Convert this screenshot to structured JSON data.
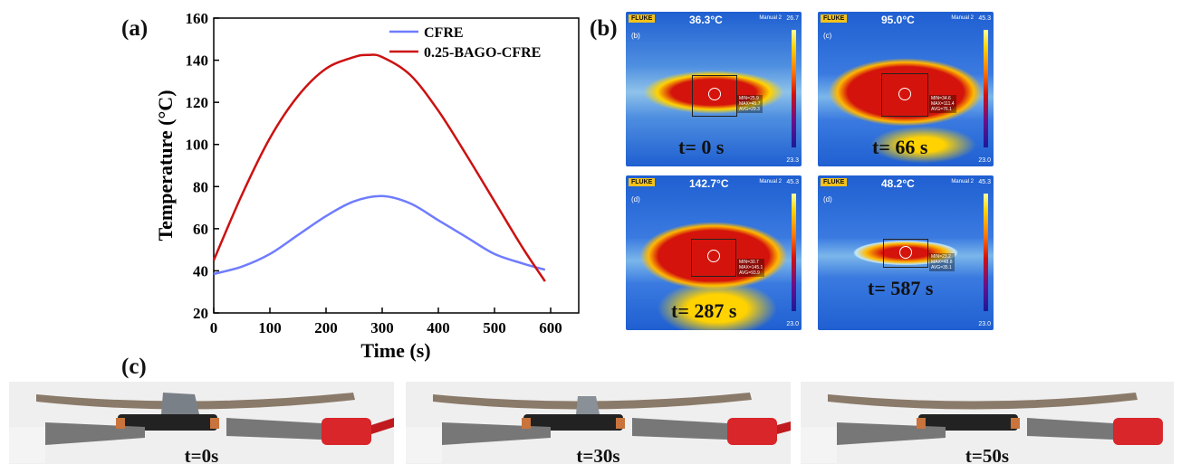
{
  "panel_labels": {
    "a": "(a)",
    "b": "(b)",
    "c": "(c)"
  },
  "chart_data": {
    "type": "line",
    "xlabel": "Time (s)",
    "ylabel": "Temperature (°C)",
    "xlim": [
      0,
      650
    ],
    "ylim": [
      20,
      160
    ],
    "xticks": [
      0,
      100,
      200,
      300,
      400,
      500,
      600
    ],
    "yticks": [
      20,
      40,
      60,
      80,
      100,
      120,
      140,
      160
    ],
    "legend_position": "top-right",
    "series": [
      {
        "name": "CFRE",
        "color": "#6f7cff",
        "x": [
          0,
          50,
          100,
          150,
          200,
          250,
          300,
          350,
          400,
          450,
          500,
          550,
          590
        ],
        "y": [
          38.5,
          42,
          48,
          57,
          66,
          73,
          75.5,
          72,
          64,
          56,
          48,
          43.5,
          40.5
        ]
      },
      {
        "name": "0.25-BAGO-CFRE",
        "color": "#cc1111",
        "x": [
          0,
          50,
          100,
          150,
          200,
          250,
          275,
          300,
          350,
          400,
          450,
          500,
          550,
          590
        ],
        "y": [
          45,
          76,
          103,
          123,
          136,
          141.5,
          142.5,
          141.5,
          133,
          116,
          95,
          73,
          51,
          35
        ]
      }
    ]
  },
  "thermal_images": [
    {
      "sub_label": "(b)",
      "brand": "FLUKE",
      "center_temp": "36.3°C",
      "mode": "Manual 2",
      "scale_max": "26.7",
      "scale_min": "23.3",
      "time_label": "t= 0 s",
      "stats": [
        "MIN=25.9",
        "MAX=45.7",
        "AVG=29.3"
      ]
    },
    {
      "sub_label": "(c)",
      "brand": "FLUKE",
      "center_temp": "95.0°C",
      "mode": "Manual 2",
      "scale_max": "45.3",
      "scale_min": "23.0",
      "time_label": "t= 66 s",
      "stats": [
        "MIN=34.6",
        "MAX=111.4",
        "AVG=76.1"
      ]
    },
    {
      "sub_label": "(d)",
      "brand": "FLUKE",
      "center_temp": "142.7°C",
      "mode": "Manual 2",
      "scale_max": "45.3",
      "scale_min": "23.0",
      "time_label": "t= 287 s",
      "stats": [
        "MIN=30.7",
        "MAX=145.1",
        "AVG=93.9"
      ]
    },
    {
      "sub_label": "(d)",
      "brand": "FLUKE",
      "center_temp": "48.2°C",
      "mode": "Manual 2",
      "scale_max": "45.3",
      "scale_min": "23.0",
      "time_label": "t= 587 s",
      "stats": [
        "MIN=23.2",
        "MAX=48.8",
        "AVG=35.1"
      ]
    }
  ],
  "photos": [
    {
      "label": "t=0s",
      "ice": "large"
    },
    {
      "label": "t=30s",
      "ice": "small"
    },
    {
      "label": "t=50s",
      "ice": "none"
    }
  ],
  "colors": {
    "thermal_cold": "#1f5fd1",
    "thermal_hot": "#d4140c",
    "clip_red": "#d8262a",
    "electrode": "#c8743c"
  }
}
